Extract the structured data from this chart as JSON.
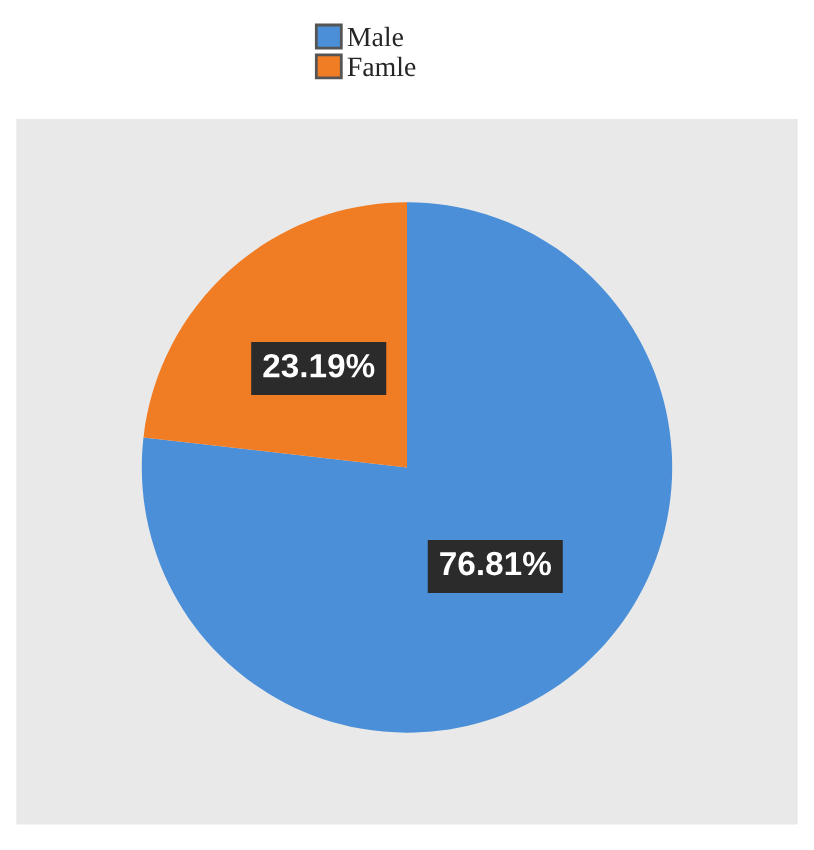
{
  "chart_data": {
    "type": "pie",
    "categories": [
      "Male",
      "Famle"
    ],
    "values": [
      76.81,
      23.19
    ],
    "colors": [
      "#4a8fd8",
      "#f07c23"
    ],
    "value_labels": [
      "76.81%",
      "23.19%"
    ],
    "legend": "top"
  }
}
